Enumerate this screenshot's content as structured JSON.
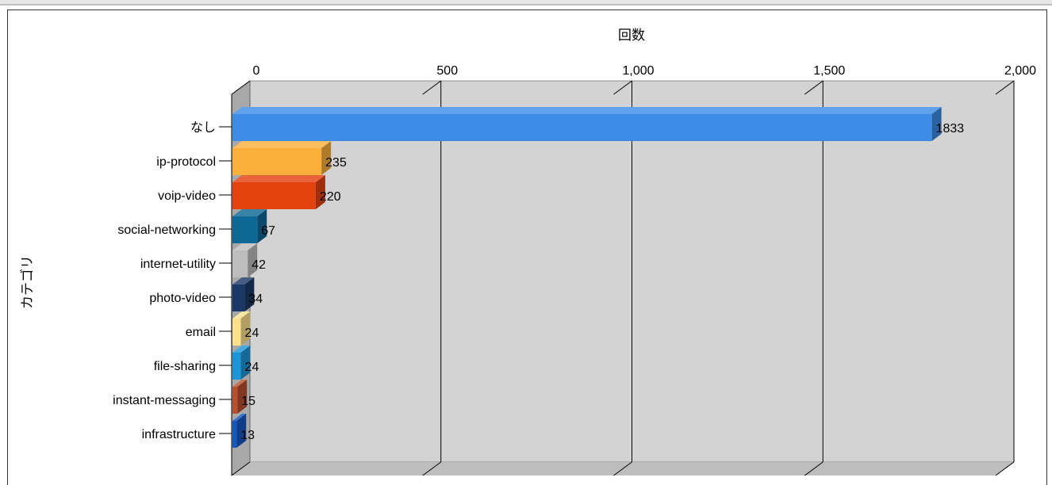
{
  "chart_data": {
    "type": "bar",
    "orientation": "horizontal",
    "style": "3d",
    "xlabel": "回数",
    "ylabel": "カテゴリ",
    "xlim": [
      0,
      2000
    ],
    "xticks": [
      "0",
      "500",
      "1,000",
      "1,500",
      "2,000"
    ],
    "xtick_values": [
      0,
      500,
      1000,
      1500,
      2000
    ],
    "grid": true,
    "categories": [
      "なし",
      "ip-protocol",
      "voip-video",
      "social-networking",
      "internet-utility",
      "photo-video",
      "email",
      "file-sharing",
      "instant-messaging",
      "infrastructure"
    ],
    "values": [
      1833,
      235,
      220,
      67,
      42,
      34,
      24,
      24,
      15,
      13
    ],
    "data_labels": [
      "1833",
      "235",
      "220",
      "67",
      "42",
      "34",
      "24",
      "24",
      "15",
      "13"
    ],
    "colors": [
      "#3c8ce6",
      "#fbb03b",
      "#e3420f",
      "#0e6896",
      "#bdbdbd",
      "#1c3966",
      "#fbe18c",
      "#1d96d8",
      "#b9502e",
      "#1557c2"
    ],
    "wall_color": "#d3d3d3",
    "floor_color": "#bdbdbd"
  }
}
